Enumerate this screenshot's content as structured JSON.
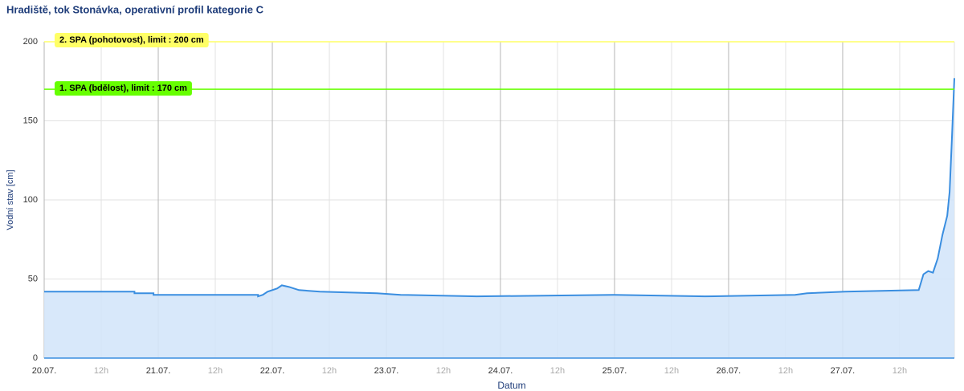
{
  "chart_data": {
    "type": "area",
    "title": "Hradiště, tok Stonávka, operativní profil kategorie C",
    "xlabel": "Datum",
    "ylabel": "Vodní stav [cm]",
    "color": "#3a8ee0",
    "fill": "#d4e6fa",
    "x": [
      0,
      19,
      19,
      23,
      23,
      45,
      45,
      46,
      47,
      49,
      50,
      51.5,
      53.6,
      58,
      70,
      75,
      91,
      120,
      139,
      158,
      160.5,
      168.5,
      184,
      185,
      186,
      187,
      188,
      189,
      190,
      190.5,
      191,
      191.5
    ],
    "values": [
      42,
      42,
      41,
      41,
      40,
      40,
      39,
      40,
      42,
      44,
      46,
      45,
      43,
      42,
      41,
      40,
      39,
      40,
      39,
      40,
      41,
      42,
      43,
      53,
      55,
      54,
      63,
      78,
      90,
      105,
      140,
      177
    ],
    "xlim": [
      0,
      191.5
    ],
    "xticks": [
      {
        "value": 0,
        "label": "20.07."
      },
      {
        "value": 12,
        "label": "12h"
      },
      {
        "value": 24,
        "label": "21.07."
      },
      {
        "value": 36,
        "label": "12h"
      },
      {
        "value": 48,
        "label": "22.07."
      },
      {
        "value": 60,
        "label": "12h"
      },
      {
        "value": 72,
        "label": "23.07."
      },
      {
        "value": 84,
        "label": "12h"
      },
      {
        "value": 96,
        "label": "24.07."
      },
      {
        "value": 108,
        "label": "12h"
      },
      {
        "value": 120,
        "label": "25.07."
      },
      {
        "value": 132,
        "label": "12h"
      },
      {
        "value": 144,
        "label": "26.07."
      },
      {
        "value": 156,
        "label": "12h"
      },
      {
        "value": 168,
        "label": "27.07."
      },
      {
        "value": 180,
        "label": "12h"
      }
    ],
    "ylim": [
      0,
      200
    ],
    "yticks": [
      0,
      50,
      100,
      150,
      200
    ],
    "grid": true,
    "thresholds": [
      {
        "label": "2. SPA (pohotovost), limit : 200 cm",
        "value": 200,
        "color": "#ffff66"
      },
      {
        "label": "1. SPA (bdělost), limit : 170 cm",
        "value": 170,
        "color": "#66ff00"
      }
    ]
  }
}
